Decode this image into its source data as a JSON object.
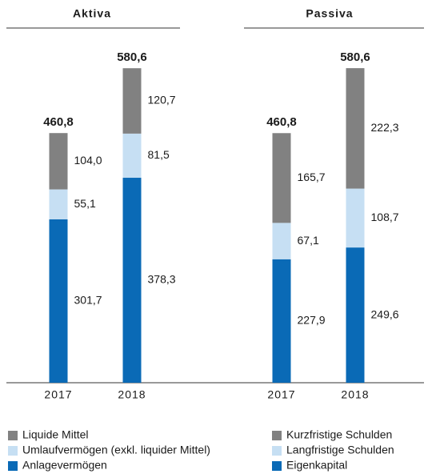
{
  "chart_data": [
    {
      "type": "bar",
      "stacked": true,
      "title": "Aktiva",
      "categories": [
        "2017",
        "2018"
      ],
      "ylim": [
        0,
        600
      ],
      "totals": [
        460.8,
        580.6
      ],
      "total_labels": [
        "460,8",
        "580,6"
      ],
      "series": [
        {
          "name": "Anlagevermögen",
          "color": "#0a6ab6",
          "values": [
            301.7,
            378.3
          ],
          "value_labels": [
            "301,7",
            "378,3"
          ]
        },
        {
          "name": "Umlaufvermögen (exkl. liquider Mittel)",
          "color": "#c6dff3",
          "values": [
            55.1,
            81.5
          ],
          "value_labels": [
            "55,1",
            "81,5"
          ]
        },
        {
          "name": "Liquide Mittel",
          "color": "#818181",
          "values": [
            104.0,
            120.7
          ],
          "value_labels": [
            "104,0",
            "120,7"
          ]
        }
      ]
    },
    {
      "type": "bar",
      "stacked": true,
      "title": "Passiva",
      "categories": [
        "2017",
        "2018"
      ],
      "ylim": [
        0,
        600
      ],
      "totals": [
        460.8,
        580.6
      ],
      "total_labels": [
        "460,8",
        "580,6"
      ],
      "series": [
        {
          "name": "Eigenkapital",
          "color": "#0a6ab6",
          "values": [
            227.9,
            249.6
          ],
          "value_labels": [
            "227,9",
            "249,6"
          ]
        },
        {
          "name": "Langfristige Schulden",
          "color": "#c6dff3",
          "values": [
            67.1,
            108.7
          ],
          "value_labels": [
            "67,1",
            "108,7"
          ]
        },
        {
          "name": "Kurzfristige Schulden",
          "color": "#818181",
          "values": [
            165.7,
            222.3
          ],
          "value_labels": [
            "165,7",
            "222,3"
          ]
        }
      ]
    }
  ]
}
